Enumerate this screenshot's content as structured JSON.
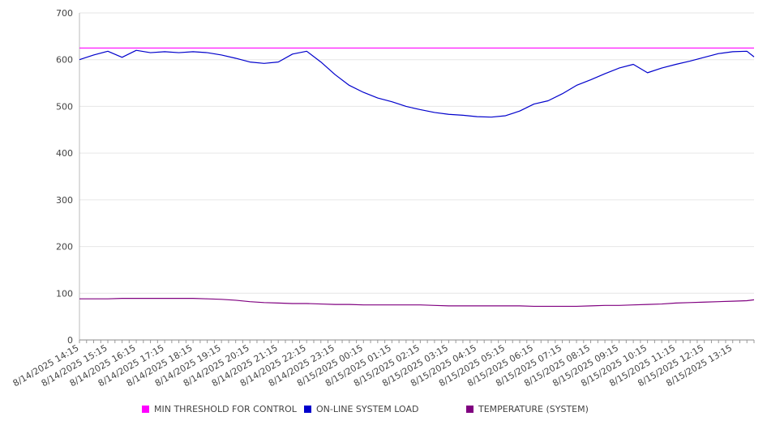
{
  "chart_data": {
    "type": "line",
    "title": "",
    "xlabel": "",
    "ylabel": "",
    "ylim": [
      0,
      700
    ],
    "y_ticks": [
      0,
      100,
      200,
      300,
      400,
      500,
      600,
      700
    ],
    "grid": true,
    "legend_position": "bottom",
    "x_tick_labels": [
      "8/14/2025 14:15",
      "8/14/2025 15:15",
      "8/14/2025 16:15",
      "8/14/2025 17:15",
      "8/14/2025 18:15",
      "8/14/2025 19:15",
      "8/14/2025 20:15",
      "8/14/2025 21:15",
      "8/14/2025 22:15",
      "8/14/2025 23:15",
      "8/15/2025 00:15",
      "8/15/2025 01:15",
      "8/15/2025 02:15",
      "8/15/2025 03:15",
      "8/15/2025 04:15",
      "8/15/2025 05:15",
      "8/15/2025 06:15",
      "8/15/2025 07:15",
      "8/15/2025 08:15",
      "8/15/2025 09:15",
      "8/15/2025 10:15",
      "8/15/2025 11:15",
      "8/15/2025 12:15",
      "8/15/2025 13:15"
    ],
    "x": [
      "8/14/2025 14:15",
      "8/14/2025 14:45",
      "8/14/2025 15:15",
      "8/14/2025 15:45",
      "8/14/2025 16:15",
      "8/14/2025 16:45",
      "8/14/2025 17:15",
      "8/14/2025 17:45",
      "8/14/2025 18:15",
      "8/14/2025 18:45",
      "8/14/2025 19:15",
      "8/14/2025 19:45",
      "8/14/2025 20:15",
      "8/14/2025 20:45",
      "8/14/2025 21:15",
      "8/14/2025 21:45",
      "8/14/2025 22:15",
      "8/14/2025 22:45",
      "8/14/2025 23:15",
      "8/14/2025 23:45",
      "8/15/2025 00:15",
      "8/15/2025 00:45",
      "8/15/2025 01:15",
      "8/15/2025 01:45",
      "8/15/2025 02:15",
      "8/15/2025 02:45",
      "8/15/2025 03:15",
      "8/15/2025 03:45",
      "8/15/2025 04:15",
      "8/15/2025 04:45",
      "8/15/2025 05:15",
      "8/15/2025 05:45",
      "8/15/2025 06:15",
      "8/15/2025 06:45",
      "8/15/2025 07:15",
      "8/15/2025 07:45",
      "8/15/2025 08:15",
      "8/15/2025 08:45",
      "8/15/2025 09:15",
      "8/15/2025 09:45",
      "8/15/2025 10:15",
      "8/15/2025 10:45",
      "8/15/2025 11:15",
      "8/15/2025 11:45",
      "8/15/2025 12:15",
      "8/15/2025 12:45",
      "8/15/2025 13:15",
      "8/15/2025 13:45",
      "8/15/2025 14:00"
    ],
    "series": [
      {
        "name": "MIN THRESHOLD FOR CONTROL",
        "color": "#ff00ff",
        "values": [
          625,
          625,
          625,
          625,
          625,
          625,
          625,
          625,
          625,
          625,
          625,
          625,
          625,
          625,
          625,
          625,
          625,
          625,
          625,
          625,
          625,
          625,
          625,
          625,
          625,
          625,
          625,
          625,
          625,
          625,
          625,
          625,
          625,
          625,
          625,
          625,
          625,
          625,
          625,
          625,
          625,
          625,
          625,
          625,
          625,
          625,
          625,
          625,
          625
        ]
      },
      {
        "name": "ON-LINE SYSTEM LOAD",
        "color": "#0000cc",
        "values": [
          600,
          610,
          618,
          605,
          620,
          615,
          617,
          615,
          617,
          615,
          610,
          603,
          595,
          592,
          595,
          612,
          618,
          595,
          568,
          545,
          530,
          518,
          510,
          500,
          493,
          487,
          483,
          481,
          478,
          477,
          480,
          490,
          505,
          512,
          527,
          545,
          557,
          570,
          582,
          590,
          572,
          582,
          590,
          597,
          605,
          613,
          617,
          618,
          606
        ]
      },
      {
        "name": "TEMPERATURE (SYSTEM)",
        "color": "#800080",
        "values": [
          88,
          88,
          88,
          89,
          89,
          89,
          89,
          89,
          89,
          88,
          87,
          85,
          82,
          80,
          79,
          78,
          78,
          77,
          76,
          76,
          75,
          75,
          75,
          75,
          75,
          74,
          73,
          73,
          73,
          73,
          73,
          73,
          72,
          72,
          72,
          72,
          73,
          74,
          74,
          75,
          76,
          77,
          79,
          80,
          81,
          82,
          83,
          84,
          86
        ]
      }
    ]
  }
}
